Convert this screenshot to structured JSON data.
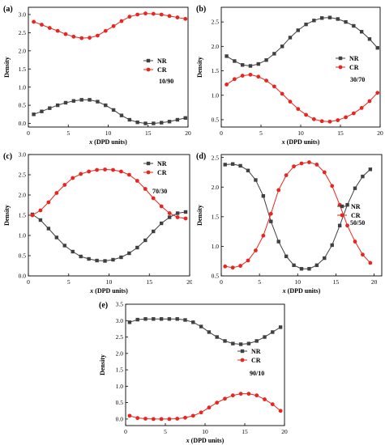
{
  "chart_data": [
    {
      "panel_label": "(a)",
      "type": "line",
      "xlabel_var": "x",
      "xlabel_rest": " (DPD units)",
      "ylabel": "Density",
      "xlim": [
        0,
        20
      ],
      "ylim": [
        -0.1,
        3.2
      ],
      "xticks": [
        "0",
        "5",
        "10",
        "15",
        "20"
      ],
      "yticks": [
        "0.0",
        "0.5",
        "1.0",
        "1.5",
        "2.0",
        "2.5",
        "3.0"
      ],
      "ratio_label": "10/90",
      "legend_position": "middle-right",
      "x": [
        0.67,
        1.67,
        2.67,
        3.67,
        4.67,
        5.67,
        6.67,
        7.67,
        8.67,
        9.67,
        10.67,
        11.67,
        12.67,
        13.67,
        14.67,
        15.67,
        16.67,
        17.67,
        18.67,
        19.67
      ],
      "series": [
        {
          "name": "NR",
          "color": "#404040",
          "marker": "square",
          "values": [
            0.25,
            0.33,
            0.42,
            0.5,
            0.57,
            0.62,
            0.65,
            0.65,
            0.6,
            0.5,
            0.37,
            0.22,
            0.1,
            0.03,
            0.0,
            0.0,
            0.02,
            0.05,
            0.1,
            0.15
          ]
        },
        {
          "name": "CR",
          "color": "#e8261f",
          "marker": "circle",
          "values": [
            2.8,
            2.72,
            2.63,
            2.55,
            2.46,
            2.39,
            2.35,
            2.36,
            2.42,
            2.55,
            2.68,
            2.82,
            2.94,
            3.0,
            3.03,
            3.02,
            3.0,
            2.96,
            2.92,
            2.88
          ]
        }
      ]
    },
    {
      "panel_label": "(b)",
      "type": "line",
      "xlabel_var": "x",
      "xlabel_rest": " (DPD units)",
      "ylabel": "Density",
      "xlim": [
        0,
        20
      ],
      "ylim": [
        0.35,
        2.8
      ],
      "xticks": [
        "0",
        "5",
        "10",
        "15",
        "20"
      ],
      "yticks": [
        "0.5",
        "1.0",
        "1.5",
        "2.0",
        "2.5"
      ],
      "ratio_label": "30/70",
      "legend_position": "middle-right",
      "x": [
        0.67,
        1.67,
        2.67,
        3.67,
        4.67,
        5.67,
        6.67,
        7.67,
        8.67,
        9.67,
        10.67,
        11.67,
        12.67,
        13.67,
        14.67,
        15.67,
        16.67,
        17.67,
        18.67,
        19.67
      ],
      "series": [
        {
          "name": "NR",
          "color": "#404040",
          "marker": "square",
          "values": [
            1.8,
            1.7,
            1.62,
            1.6,
            1.64,
            1.72,
            1.85,
            2.0,
            2.18,
            2.33,
            2.45,
            2.53,
            2.58,
            2.59,
            2.56,
            2.5,
            2.42,
            2.3,
            2.15,
            1.97
          ]
        },
        {
          "name": "CR",
          "color": "#e8261f",
          "marker": "circle",
          "values": [
            1.22,
            1.33,
            1.4,
            1.42,
            1.38,
            1.3,
            1.18,
            1.03,
            0.87,
            0.72,
            0.6,
            0.51,
            0.47,
            0.46,
            0.49,
            0.55,
            0.63,
            0.74,
            0.88,
            1.05
          ]
        }
      ]
    },
    {
      "panel_label": "(c)",
      "type": "line",
      "xlabel_var": "x",
      "xlabel_rest": " (DPD units)",
      "ylabel": "Density",
      "xlim": [
        0,
        20
      ],
      "ylim": [
        0,
        3.0
      ],
      "xticks": [
        "0",
        "5",
        "10",
        "15",
        "20"
      ],
      "yticks": [
        "0.0",
        "0.5",
        "1.0",
        "1.5",
        "2.0",
        "2.5",
        "3.0"
      ],
      "ratio_label": "70/30",
      "legend_position": "top-right",
      "x": [
        0.5,
        1.5,
        2.5,
        3.5,
        4.5,
        5.5,
        6.5,
        7.5,
        8.5,
        9.5,
        10.5,
        11.5,
        12.5,
        13.5,
        14.5,
        15.5,
        16.5,
        17.5,
        18.5,
        19.5
      ],
      "series": [
        {
          "name": "NR",
          "color": "#404040",
          "marker": "square",
          "values": [
            1.52,
            1.38,
            1.17,
            0.95,
            0.75,
            0.6,
            0.48,
            0.42,
            0.38,
            0.37,
            0.4,
            0.46,
            0.56,
            0.7,
            0.88,
            1.1,
            1.3,
            1.45,
            1.55,
            1.58
          ]
        },
        {
          "name": "CR",
          "color": "#e8261f",
          "marker": "circle",
          "values": [
            1.5,
            1.62,
            1.82,
            2.05,
            2.25,
            2.42,
            2.52,
            2.58,
            2.62,
            2.63,
            2.62,
            2.58,
            2.5,
            2.35,
            2.15,
            1.92,
            1.72,
            1.55,
            1.45,
            1.42
          ]
        }
      ]
    },
    {
      "panel_label": "(d)",
      "type": "line",
      "xlabel_var": "x",
      "xlabel_rest": " (DPD units)",
      "ylabel": "Density",
      "xlim": [
        0,
        21
      ],
      "ylim": [
        0.5,
        2.55
      ],
      "xticks": [
        "0",
        "5",
        "10",
        "15",
        "20"
      ],
      "yticks": [
        "0.5",
        "1.0",
        "1.5",
        "2.0",
        "2.5"
      ],
      "ratio_label": "50/50",
      "legend_position": "middle-right",
      "x": [
        0.5,
        1.5,
        2.5,
        3.5,
        4.5,
        5.5,
        6.5,
        7.5,
        8.5,
        9.5,
        10.5,
        11.5,
        12.5,
        13.5,
        14.5,
        15.5,
        16.5,
        17.5,
        18.5,
        19.5
      ],
      "series": [
        {
          "name": "NR",
          "color": "#404040",
          "marker": "square",
          "values": [
            2.38,
            2.39,
            2.36,
            2.28,
            2.12,
            1.85,
            1.42,
            1.08,
            0.83,
            0.68,
            0.62,
            0.62,
            0.68,
            0.8,
            1.02,
            1.35,
            1.7,
            1.98,
            2.18,
            2.3
          ]
        },
        {
          "name": "CR",
          "color": "#e8261f",
          "marker": "circle",
          "values": [
            0.66,
            0.64,
            0.67,
            0.76,
            0.93,
            1.18,
            1.55,
            1.95,
            2.2,
            2.35,
            2.4,
            2.42,
            2.38,
            2.25,
            2.02,
            1.7,
            1.35,
            1.08,
            0.86,
            0.72
          ]
        }
      ]
    },
    {
      "panel_label": "(e)",
      "type": "line",
      "xlabel_var": "x",
      "xlabel_rest": " (DPD units)",
      "ylabel": "Density",
      "xlim": [
        0,
        20
      ],
      "ylim": [
        -0.2,
        3.5
      ],
      "xticks": [
        "0",
        "5",
        "10",
        "15",
        "20"
      ],
      "yticks": [
        "0.0",
        "0.5",
        "1.0",
        "1.5",
        "2.0",
        "2.5",
        "3.0",
        "3.5"
      ],
      "ratio_label": "90/10",
      "legend_position": "middle-right",
      "x": [
        0.5,
        1.5,
        2.5,
        3.5,
        4.5,
        5.5,
        6.5,
        7.5,
        8.5,
        9.5,
        10.5,
        11.5,
        12.5,
        13.5,
        14.5,
        15.5,
        16.5,
        17.5,
        18.5,
        19.5
      ],
      "series": [
        {
          "name": "NR",
          "color": "#404040",
          "marker": "square",
          "values": [
            2.95,
            3.03,
            3.05,
            3.05,
            3.05,
            3.05,
            3.05,
            3.02,
            2.95,
            2.82,
            2.65,
            2.5,
            2.38,
            2.3,
            2.28,
            2.3,
            2.38,
            2.5,
            2.65,
            2.8
          ]
        },
        {
          "name": "CR",
          "color": "#e8261f",
          "marker": "circle",
          "values": [
            0.1,
            0.03,
            0.01,
            0.0,
            0.0,
            0.0,
            0.01,
            0.04,
            0.1,
            0.2,
            0.35,
            0.5,
            0.62,
            0.72,
            0.77,
            0.77,
            0.72,
            0.6,
            0.45,
            0.25
          ]
        }
      ]
    }
  ]
}
